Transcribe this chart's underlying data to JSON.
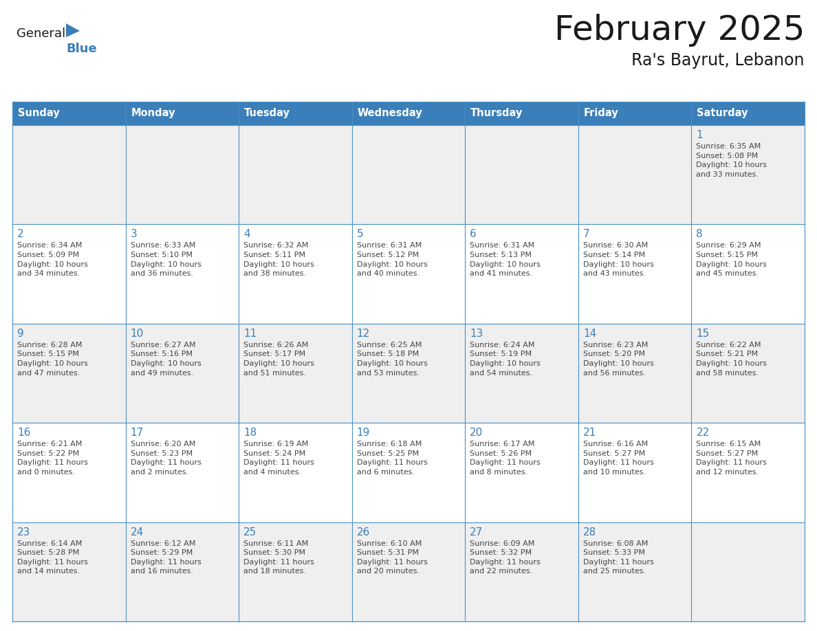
{
  "title": "February 2025",
  "subtitle": "Ra's Bayrut, Lebanon",
  "header_bg": "#3A7FBA",
  "header_text": "#FFFFFF",
  "row_bg_light": "#EFEFEF",
  "row_bg_white": "#FFFFFF",
  "cell_border_color": "#4A90C4",
  "day_headers": [
    "Sunday",
    "Monday",
    "Tuesday",
    "Wednesday",
    "Thursday",
    "Friday",
    "Saturday"
  ],
  "title_color": "#1a1a1a",
  "subtitle_color": "#1a1a1a",
  "day_number_color": "#3A7FBA",
  "info_color": "#444444",
  "logo_general_color": "#1a1a1a",
  "logo_blue_color": "#3A7FBA",
  "weeks": [
    [
      {
        "day": null,
        "info": null
      },
      {
        "day": null,
        "info": null
      },
      {
        "day": null,
        "info": null
      },
      {
        "day": null,
        "info": null
      },
      {
        "day": null,
        "info": null
      },
      {
        "day": null,
        "info": null
      },
      {
        "day": "1",
        "info": "Sunrise: 6:35 AM\nSunset: 5:08 PM\nDaylight: 10 hours\nand 33 minutes."
      }
    ],
    [
      {
        "day": "2",
        "info": "Sunrise: 6:34 AM\nSunset: 5:09 PM\nDaylight: 10 hours\nand 34 minutes."
      },
      {
        "day": "3",
        "info": "Sunrise: 6:33 AM\nSunset: 5:10 PM\nDaylight: 10 hours\nand 36 minutes."
      },
      {
        "day": "4",
        "info": "Sunrise: 6:32 AM\nSunset: 5:11 PM\nDaylight: 10 hours\nand 38 minutes."
      },
      {
        "day": "5",
        "info": "Sunrise: 6:31 AM\nSunset: 5:12 PM\nDaylight: 10 hours\nand 40 minutes."
      },
      {
        "day": "6",
        "info": "Sunrise: 6:31 AM\nSunset: 5:13 PM\nDaylight: 10 hours\nand 41 minutes."
      },
      {
        "day": "7",
        "info": "Sunrise: 6:30 AM\nSunset: 5:14 PM\nDaylight: 10 hours\nand 43 minutes."
      },
      {
        "day": "8",
        "info": "Sunrise: 6:29 AM\nSunset: 5:15 PM\nDaylight: 10 hours\nand 45 minutes."
      }
    ],
    [
      {
        "day": "9",
        "info": "Sunrise: 6:28 AM\nSunset: 5:15 PM\nDaylight: 10 hours\nand 47 minutes."
      },
      {
        "day": "10",
        "info": "Sunrise: 6:27 AM\nSunset: 5:16 PM\nDaylight: 10 hours\nand 49 minutes."
      },
      {
        "day": "11",
        "info": "Sunrise: 6:26 AM\nSunset: 5:17 PM\nDaylight: 10 hours\nand 51 minutes."
      },
      {
        "day": "12",
        "info": "Sunrise: 6:25 AM\nSunset: 5:18 PM\nDaylight: 10 hours\nand 53 minutes."
      },
      {
        "day": "13",
        "info": "Sunrise: 6:24 AM\nSunset: 5:19 PM\nDaylight: 10 hours\nand 54 minutes."
      },
      {
        "day": "14",
        "info": "Sunrise: 6:23 AM\nSunset: 5:20 PM\nDaylight: 10 hours\nand 56 minutes."
      },
      {
        "day": "15",
        "info": "Sunrise: 6:22 AM\nSunset: 5:21 PM\nDaylight: 10 hours\nand 58 minutes."
      }
    ],
    [
      {
        "day": "16",
        "info": "Sunrise: 6:21 AM\nSunset: 5:22 PM\nDaylight: 11 hours\nand 0 minutes."
      },
      {
        "day": "17",
        "info": "Sunrise: 6:20 AM\nSunset: 5:23 PM\nDaylight: 11 hours\nand 2 minutes."
      },
      {
        "day": "18",
        "info": "Sunrise: 6:19 AM\nSunset: 5:24 PM\nDaylight: 11 hours\nand 4 minutes."
      },
      {
        "day": "19",
        "info": "Sunrise: 6:18 AM\nSunset: 5:25 PM\nDaylight: 11 hours\nand 6 minutes."
      },
      {
        "day": "20",
        "info": "Sunrise: 6:17 AM\nSunset: 5:26 PM\nDaylight: 11 hours\nand 8 minutes."
      },
      {
        "day": "21",
        "info": "Sunrise: 6:16 AM\nSunset: 5:27 PM\nDaylight: 11 hours\nand 10 minutes."
      },
      {
        "day": "22",
        "info": "Sunrise: 6:15 AM\nSunset: 5:27 PM\nDaylight: 11 hours\nand 12 minutes."
      }
    ],
    [
      {
        "day": "23",
        "info": "Sunrise: 6:14 AM\nSunset: 5:28 PM\nDaylight: 11 hours\nand 14 minutes."
      },
      {
        "day": "24",
        "info": "Sunrise: 6:12 AM\nSunset: 5:29 PM\nDaylight: 11 hours\nand 16 minutes."
      },
      {
        "day": "25",
        "info": "Sunrise: 6:11 AM\nSunset: 5:30 PM\nDaylight: 11 hours\nand 18 minutes."
      },
      {
        "day": "26",
        "info": "Sunrise: 6:10 AM\nSunset: 5:31 PM\nDaylight: 11 hours\nand 20 minutes."
      },
      {
        "day": "27",
        "info": "Sunrise: 6:09 AM\nSunset: 5:32 PM\nDaylight: 11 hours\nand 22 minutes."
      },
      {
        "day": "28",
        "info": "Sunrise: 6:08 AM\nSunset: 5:33 PM\nDaylight: 11 hours\nand 25 minutes."
      },
      {
        "day": null,
        "info": null
      }
    ]
  ]
}
